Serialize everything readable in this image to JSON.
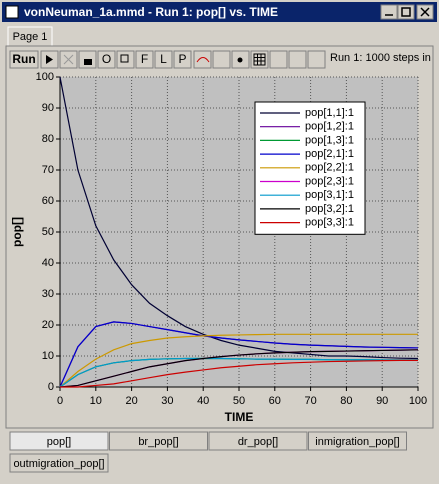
{
  "window": {
    "title": "vonNeuman_1a.mmd - Run 1: pop[] vs. TIME",
    "tab": "Page 1"
  },
  "toolbar": {
    "run": "Run",
    "buttons": [
      "O",
      "F",
      "L",
      "P"
    ],
    "status": "Run 1: 1000 steps in"
  },
  "chart_data": {
    "type": "line",
    "xlabel": "TIME",
    "ylabel": "pop[]",
    "x": [
      0,
      5,
      10,
      15,
      20,
      25,
      30,
      35,
      40,
      45,
      50,
      55,
      60,
      65,
      70,
      75,
      80,
      85,
      90,
      95,
      100
    ],
    "xlim": [
      0,
      100
    ],
    "ylim": [
      0,
      100
    ],
    "xticks": [
      0,
      10,
      20,
      30,
      40,
      50,
      60,
      70,
      80,
      90,
      100
    ],
    "yticks": [
      0,
      10,
      20,
      30,
      40,
      50,
      60,
      70,
      80,
      90,
      100
    ],
    "grid": true,
    "legend": "upper right",
    "series": [
      {
        "name": "pop[1,1]:1",
        "color": "#000033",
        "values": [
          100,
          70,
          52,
          41,
          33,
          27,
          23,
          19.5,
          17,
          15,
          13.5,
          12.5,
          11.5,
          11,
          10.5,
          10,
          10,
          9.8,
          9.5,
          9.3,
          9.2
        ]
      },
      {
        "name": "pop[1,2]:1",
        "color": "#660099",
        "values": [
          0,
          13,
          19.5,
          21,
          20.5,
          19.5,
          18.5,
          17.5,
          16.5,
          15.8,
          15.2,
          14.7,
          14.2,
          13.8,
          13.5,
          13.3,
          13.1,
          12.9,
          12.8,
          12.7,
          12.6
        ]
      },
      {
        "name": "pop[1,3]:1",
        "color": "#009933",
        "values": [
          0,
          4,
          6.5,
          7.8,
          8.5,
          8.9,
          9.1,
          9.2,
          9.2,
          9.2,
          9.1,
          9,
          9,
          8.9,
          8.9,
          8.8,
          8.8,
          8.8,
          8.7,
          8.7,
          8.7
        ]
      },
      {
        "name": "pop[2,1]:1",
        "color": "#0000cc",
        "values": [
          0,
          13,
          19.5,
          21,
          20.5,
          19.5,
          18.5,
          17.5,
          16.5,
          15.8,
          15.2,
          14.7,
          14.2,
          13.8,
          13.5,
          13.3,
          13.1,
          12.9,
          12.8,
          12.7,
          12.6
        ]
      },
      {
        "name": "pop[2,2]:1",
        "color": "#cc9900",
        "values": [
          0,
          5,
          9,
          12,
          14,
          15,
          15.8,
          16.2,
          16.5,
          16.7,
          16.8,
          16.9,
          17,
          17,
          17,
          17,
          17,
          17,
          17,
          17,
          17
        ]
      },
      {
        "name": "pop[2,3]:1",
        "color": "#cc00cc",
        "values": [
          0,
          0.5,
          2,
          3.5,
          5,
          6.5,
          7.5,
          8.5,
          9.2,
          9.8,
          10.3,
          10.7,
          11,
          11.2,
          11.4,
          11.5,
          11.6,
          11.7,
          11.8,
          11.9,
          12
        ]
      },
      {
        "name": "pop[3,1]:1",
        "color": "#0099cc",
        "values": [
          0,
          4,
          6.5,
          7.8,
          8.5,
          8.9,
          9.1,
          9.2,
          9.2,
          9.2,
          9.1,
          9,
          9,
          8.9,
          8.9,
          8.8,
          8.8,
          8.8,
          8.7,
          8.7,
          8.7
        ]
      },
      {
        "name": "pop[3,2]:1",
        "color": "#000000",
        "values": [
          0,
          0.5,
          2,
          3.5,
          5,
          6.5,
          7.5,
          8.5,
          9.2,
          9.8,
          10.3,
          10.7,
          11,
          11.2,
          11.4,
          11.5,
          11.6,
          11.7,
          11.8,
          11.9,
          12
        ]
      },
      {
        "name": "pop[3,3]:1",
        "color": "#cc0000",
        "values": [
          0,
          0,
          0.5,
          1,
          2,
          3,
          4,
          4.8,
          5.5,
          6.2,
          6.7,
          7.2,
          7.5,
          7.8,
          8,
          8.2,
          8.3,
          8.4,
          8.5,
          8.6,
          8.6
        ]
      }
    ]
  },
  "tabs": [
    "pop[]",
    "br_pop[]",
    "dr_pop[]",
    "inmigration_pop[]",
    "outmigration_pop[]"
  ]
}
